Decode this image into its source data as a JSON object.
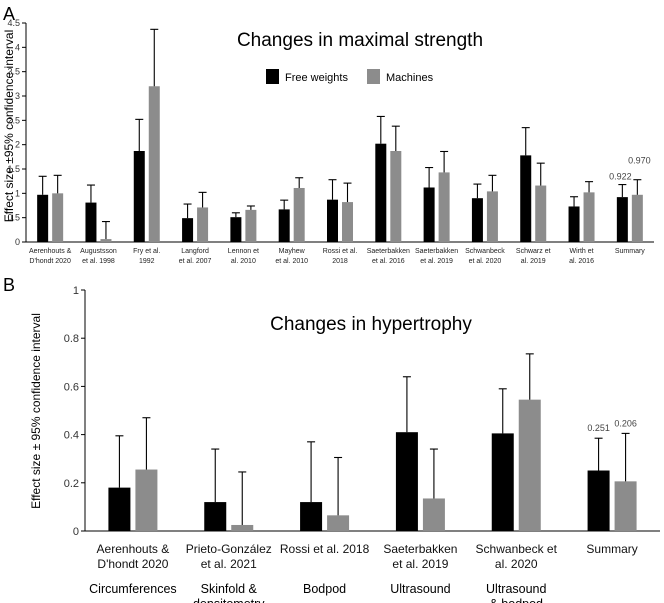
{
  "legend": {
    "series1": "Free weights",
    "series2": "Machines"
  },
  "colors": {
    "free_weights": "#000000",
    "machines": "#8c8c8c"
  },
  "chart_data": [
    {
      "panel": "A",
      "type": "bar",
      "title": "Changes in maximal strength",
      "ylabel": "Effect size ±95% confidence interval",
      "ylim": [
        0,
        4.5
      ],
      "yticks": [
        "0",
        "0.5",
        "1",
        "1.5",
        "2",
        "2.5",
        "3",
        "3.5",
        "4",
        "4.5"
      ],
      "categories": [
        [
          "Aerenhouts &",
          "D'hondt 2020"
        ],
        [
          "Augustsson",
          "et al. 1998"
        ],
        [
          "Fry et al.",
          "1992"
        ],
        [
          "Langford",
          "et al. 2007"
        ],
        [
          "Lennon et",
          "al. 2010"
        ],
        [
          "Mayhew",
          "et al. 2010"
        ],
        [
          "Rossi et al.",
          "2018"
        ],
        [
          "Saeterbakken",
          "et al. 2016"
        ],
        [
          "Saeterbakken",
          "et al. 2019"
        ],
        [
          "Schwanbeck",
          "et al. 2020"
        ],
        [
          "Schwarz et",
          "al. 2019"
        ],
        [
          "Wirth et",
          "al. 2016"
        ],
        [
          "Summary"
        ]
      ],
      "series": [
        {
          "name": "Free weights",
          "values": [
            0.97,
            0.81,
            1.87,
            0.49,
            0.51,
            0.67,
            0.87,
            2.02,
            1.12,
            0.9,
            1.78,
            0.73,
            0.922
          ],
          "upper": [
            1.35,
            1.17,
            2.52,
            0.78,
            0.6,
            0.86,
            1.28,
            2.58,
            1.53,
            1.19,
            2.35,
            0.93,
            1.18
          ]
        },
        {
          "name": "Machines",
          "values": [
            1.0,
            0.06,
            3.2,
            0.71,
            0.66,
            1.11,
            0.82,
            1.87,
            1.43,
            1.04,
            1.16,
            1.02,
            0.97
          ],
          "upper": [
            1.37,
            0.42,
            4.37,
            1.02,
            0.74,
            1.32,
            1.21,
            2.38,
            1.86,
            1.37,
            1.62,
            1.24,
            1.28
          ]
        }
      ],
      "annotations": [
        "0.922",
        "0.970"
      ]
    },
    {
      "panel": "B",
      "type": "bar",
      "title": "Changes in hypertrophy",
      "ylabel": "Effect size ± 95% confidence interval",
      "ylim": [
        0,
        1
      ],
      "yticks": [
        "0",
        "0.2",
        "0.4",
        "0.6",
        "0.8",
        "1"
      ],
      "categories": [
        [
          "Aerenhouts &",
          "D'hondt 2020"
        ],
        [
          "Prieto-González",
          "et al. 2021"
        ],
        [
          "Rossi et al. 2018"
        ],
        [
          "Saeterbakken",
          "et al. 2019"
        ],
        [
          "Schwanbeck et",
          "al. 2020"
        ],
        [
          "Summary"
        ]
      ],
      "groups": [
        [
          "Circumferences"
        ],
        [
          "Skinfold &",
          "densitometry"
        ],
        [
          "Bodpod"
        ],
        [
          "Ultrasound"
        ],
        [
          "Ultrasound",
          "& bodpod"
        ],
        [
          ""
        ]
      ],
      "series": [
        {
          "name": "Free weights",
          "values": [
            0.18,
            0.12,
            0.12,
            0.41,
            0.405,
            0.251
          ],
          "upper": [
            0.395,
            0.34,
            0.37,
            0.64,
            0.59,
            0.385
          ]
        },
        {
          "name": "Machines",
          "values": [
            0.255,
            0.025,
            0.065,
            0.135,
            0.545,
            0.206
          ],
          "upper": [
            0.47,
            0.245,
            0.305,
            0.34,
            0.735,
            0.405
          ]
        }
      ],
      "annotations": [
        "0.251",
        "0.206"
      ]
    }
  ]
}
